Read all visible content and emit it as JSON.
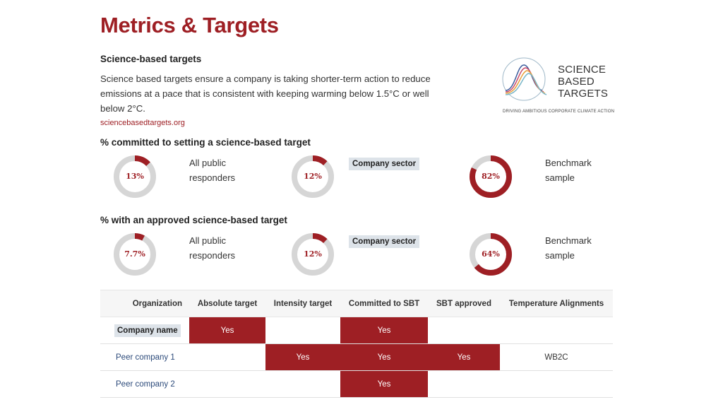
{
  "page": {
    "title": "Metrics & Targets",
    "section_heading": "Science-based targets",
    "intro": "Science based targets ensure a company is taking shorter-term action to reduce emissions at a pace that is consistent with keeping warming below 1.5°C or well below 2°C.",
    "link": "sciencebasedtargets.org"
  },
  "logo": {
    "line1": "SCIENCE",
    "line2": "BASED",
    "line3": "TARGETS",
    "tagline": "DRIVING AMBITIOUS CORPORATE CLIMATE ACTION",
    "colors": [
      "#3a5b9c",
      "#c94a6b",
      "#e8a03a",
      "#7ab6c8"
    ]
  },
  "accent_color": "#9e1f24",
  "ring_color": "#d6d6d6",
  "committed": {
    "heading": "% committed to setting a science-based target",
    "items": [
      {
        "value": "13%",
        "fraction": 0.13,
        "label": "All public responders"
      },
      {
        "value": "12%",
        "fraction": 0.12,
        "label": "Company sector"
      },
      {
        "value": "82%",
        "fraction": 0.82,
        "label": "Benchmark sample"
      }
    ]
  },
  "approved": {
    "heading": "% with an approved science-based target",
    "items": [
      {
        "value": "7.7%",
        "fraction": 0.077,
        "label": "All public responders"
      },
      {
        "value": "12%",
        "fraction": 0.12,
        "label": "Company sector"
      },
      {
        "value": "64%",
        "fraction": 0.64,
        "label": "Benchmark sample"
      }
    ]
  },
  "table": {
    "headers": [
      "Organization",
      "Absolute target",
      "Intensity target",
      "Committed to SBT",
      "SBT approved",
      "Temperature Alignments"
    ],
    "rows": [
      {
        "org": "Company name",
        "cells": [
          "Yes",
          "",
          "Yes",
          "",
          ""
        ]
      },
      {
        "org": "Peer company 1",
        "cells": [
          "",
          "Yes",
          "Yes",
          "Yes",
          "WB2C"
        ]
      },
      {
        "org": "Peer company 2",
        "cells": [
          "",
          "",
          "Yes",
          "",
          ""
        ]
      }
    ]
  }
}
